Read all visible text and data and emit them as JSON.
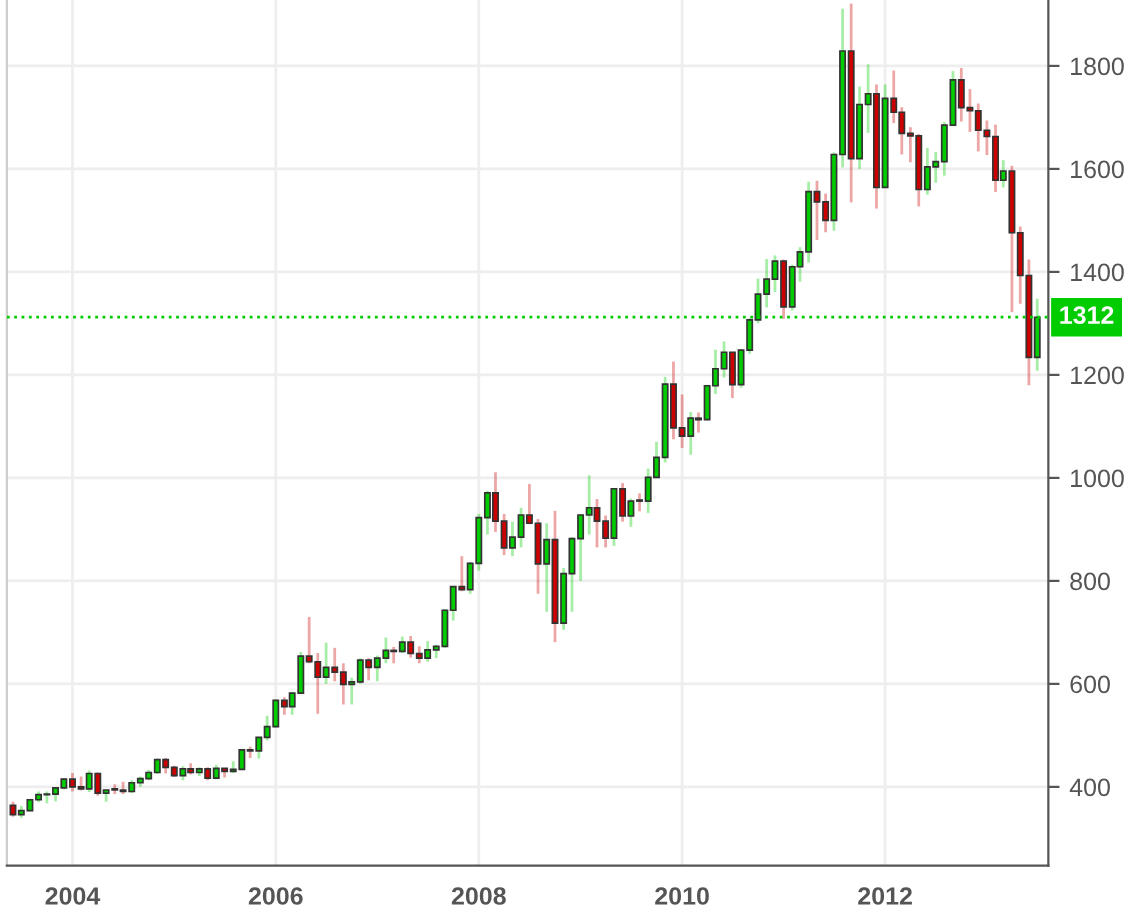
{
  "chart_data": {
    "type": "candlestick",
    "x": [
      "2003-06",
      "2003-07",
      "2003-08",
      "2003-09",
      "2003-10",
      "2003-11",
      "2003-12",
      "2004-01",
      "2004-02",
      "2004-03",
      "2004-04",
      "2004-05",
      "2004-06",
      "2004-07",
      "2004-08",
      "2004-09",
      "2004-10",
      "2004-11",
      "2004-12",
      "2005-01",
      "2005-02",
      "2005-03",
      "2005-04",
      "2005-05",
      "2005-06",
      "2005-07",
      "2005-08",
      "2005-09",
      "2005-10",
      "2005-11",
      "2005-12",
      "2006-01",
      "2006-02",
      "2006-03",
      "2006-04",
      "2006-05",
      "2006-06",
      "2006-07",
      "2006-08",
      "2006-09",
      "2006-10",
      "2006-11",
      "2006-12",
      "2007-01",
      "2007-02",
      "2007-03",
      "2007-04",
      "2007-05",
      "2007-06",
      "2007-07",
      "2007-08",
      "2007-09",
      "2007-10",
      "2007-11",
      "2007-12",
      "2008-01",
      "2008-02",
      "2008-03",
      "2008-04",
      "2008-05",
      "2008-06",
      "2008-07",
      "2008-08",
      "2008-09",
      "2008-10",
      "2008-11",
      "2008-12",
      "2009-01",
      "2009-02",
      "2009-03",
      "2009-04",
      "2009-05",
      "2009-06",
      "2009-07",
      "2009-08",
      "2009-09",
      "2009-10",
      "2009-11",
      "2009-12",
      "2010-01",
      "2010-02",
      "2010-03",
      "2010-04",
      "2010-05",
      "2010-06",
      "2010-07",
      "2010-08",
      "2010-09",
      "2010-10",
      "2010-11",
      "2010-12",
      "2011-01",
      "2011-02",
      "2011-03",
      "2011-04",
      "2011-05",
      "2011-06",
      "2011-07",
      "2011-08",
      "2011-09",
      "2011-10",
      "2011-11",
      "2011-12",
      "2012-01",
      "2012-02",
      "2012-03",
      "2012-04",
      "2012-05",
      "2012-06",
      "2012-07",
      "2012-08",
      "2012-09",
      "2012-10",
      "2012-11",
      "2012-12",
      "2013-01",
      "2013-02",
      "2013-03",
      "2013-04",
      "2013-05",
      "2013-06",
      "2013-07"
    ],
    "ohlc": [
      [
        364,
        371,
        342,
        346
      ],
      [
        346,
        363,
        340,
        354
      ],
      [
        354,
        377,
        352,
        375
      ],
      [
        375,
        391,
        370,
        385
      ],
      [
        385,
        391,
        368,
        386
      ],
      [
        386,
        400,
        372,
        398
      ],
      [
        398,
        417,
        395,
        415
      ],
      [
        415,
        427,
        391,
        400
      ],
      [
        400,
        420,
        393,
        396
      ],
      [
        396,
        432,
        390,
        426
      ],
      [
        426,
        428,
        383,
        388
      ],
      [
        388,
        395,
        371,
        394
      ],
      [
        396,
        405,
        386,
        394
      ],
      [
        394,
        410,
        386,
        391
      ],
      [
        391,
        413,
        388,
        408
      ],
      [
        408,
        420,
        400,
        416
      ],
      [
        416,
        433,
        413,
        428
      ],
      [
        428,
        455,
        425,
        453
      ],
      [
        453,
        456,
        426,
        438
      ],
      [
        438,
        441,
        419,
        422
      ],
      [
        422,
        440,
        413,
        435
      ],
      [
        435,
        446,
        424,
        428
      ],
      [
        428,
        438,
        421,
        435
      ],
      [
        435,
        438,
        413,
        417
      ],
      [
        417,
        443,
        415,
        436
      ],
      [
        436,
        436,
        418,
        430
      ],
      [
        430,
        450,
        427,
        434
      ],
      [
        434,
        474,
        433,
        472
      ],
      [
        472,
        478,
        456,
        470
      ],
      [
        470,
        497,
        455,
        496
      ],
      [
        496,
        538,
        490,
        517
      ],
      [
        517,
        570,
        515,
        568
      ],
      [
        568,
        574,
        540,
        556
      ],
      [
        556,
        585,
        540,
        582
      ],
      [
        582,
        662,
        580,
        654
      ],
      [
        654,
        730,
        640,
        643
      ],
      [
        643,
        660,
        542,
        613
      ],
      [
        613,
        680,
        600,
        632
      ],
      [
        632,
        670,
        605,
        623
      ],
      [
        623,
        640,
        560,
        599
      ],
      [
        599,
        612,
        560,
        604
      ],
      [
        604,
        650,
        600,
        646
      ],
      [
        646,
        650,
        607,
        632
      ],
      [
        632,
        655,
        605,
        650
      ],
      [
        650,
        690,
        640,
        665
      ],
      [
        665,
        672,
        640,
        663
      ],
      [
        663,
        692,
        660,
        681
      ],
      [
        681,
        693,
        651,
        659
      ],
      [
        659,
        673,
        640,
        650
      ],
      [
        650,
        683,
        643,
        666
      ],
      [
        666,
        676,
        650,
        673
      ],
      [
        673,
        745,
        670,
        743
      ],
      [
        743,
        790,
        723,
        789
      ],
      [
        789,
        848,
        780,
        783
      ],
      [
        783,
        837,
        775,
        834
      ],
      [
        834,
        930,
        820,
        923
      ],
      [
        923,
        975,
        890,
        971
      ],
      [
        971,
        1011,
        895,
        916
      ],
      [
        916,
        930,
        850,
        864
      ],
      [
        864,
        915,
        848,
        885
      ],
      [
        885,
        942,
        865,
        928
      ],
      [
        928,
        988,
        910,
        912
      ],
      [
        912,
        920,
        775,
        833
      ],
      [
        833,
        912,
        740,
        880
      ],
      [
        880,
        936,
        681,
        718
      ],
      [
        718,
        825,
        705,
        814
      ],
      [
        814,
        885,
        740,
        882
      ],
      [
        882,
        930,
        800,
        928
      ],
      [
        928,
        1005,
        890,
        942
      ],
      [
        942,
        959,
        865,
        916
      ],
      [
        916,
        927,
        865,
        883
      ],
      [
        883,
        980,
        868,
        979
      ],
      [
        979,
        990,
        915,
        926
      ],
      [
        926,
        960,
        905,
        955
      ],
      [
        957,
        970,
        935,
        955
      ],
      [
        955,
        1018,
        932,
        1001
      ],
      [
        1001,
        1070,
        1000,
        1040
      ],
      [
        1040,
        1196,
        1030,
        1182
      ],
      [
        1182,
        1226,
        1075,
        1097
      ],
      [
        1097,
        1162,
        1058,
        1081
      ],
      [
        1081,
        1128,
        1045,
        1116
      ],
      [
        1116,
        1127,
        1088,
        1113
      ],
      [
        1113,
        1180,
        1112,
        1179
      ],
      [
        1179,
        1249,
        1163,
        1212
      ],
      [
        1212,
        1265,
        1195,
        1244
      ],
      [
        1244,
        1245,
        1155,
        1181
      ],
      [
        1181,
        1250,
        1175,
        1248
      ],
      [
        1248,
        1310,
        1241,
        1307
      ],
      [
        1307,
        1387,
        1300,
        1357
      ],
      [
        1357,
        1425,
        1331,
        1386
      ],
      [
        1386,
        1432,
        1361,
        1421
      ],
      [
        1421,
        1424,
        1309,
        1332
      ],
      [
        1332,
        1414,
        1325,
        1410
      ],
      [
        1410,
        1448,
        1381,
        1439
      ],
      [
        1439,
        1575,
        1418,
        1556
      ],
      [
        1556,
        1577,
        1462,
        1536
      ],
      [
        1536,
        1552,
        1477,
        1500
      ],
      [
        1500,
        1632,
        1480,
        1628
      ],
      [
        1628,
        1911,
        1603,
        1829
      ],
      [
        1829,
        1921,
        1535,
        1620
      ],
      [
        1620,
        1760,
        1600,
        1725
      ],
      [
        1725,
        1803,
        1670,
        1746
      ],
      [
        1746,
        1764,
        1523,
        1564
      ],
      [
        1564,
        1764,
        1564,
        1737
      ],
      [
        1737,
        1791,
        1689,
        1710
      ],
      [
        1710,
        1720,
        1628,
        1669
      ],
      [
        1669,
        1681,
        1613,
        1664
      ],
      [
        1664,
        1668,
        1527,
        1560
      ],
      [
        1560,
        1641,
        1550,
        1604
      ],
      [
        1604,
        1633,
        1573,
        1614
      ],
      [
        1614,
        1691,
        1587,
        1685
      ],
      [
        1685,
        1790,
        1683,
        1773
      ],
      [
        1773,
        1796,
        1692,
        1719
      ],
      [
        1719,
        1755,
        1672,
        1713
      ],
      [
        1713,
        1727,
        1634,
        1675
      ],
      [
        1675,
        1694,
        1627,
        1663
      ],
      [
        1663,
        1686,
        1555,
        1578
      ],
      [
        1578,
        1617,
        1564,
        1596
      ],
      [
        1596,
        1606,
        1322,
        1476
      ],
      [
        1476,
        1488,
        1338,
        1393
      ],
      [
        1393,
        1424,
        1180,
        1234
      ],
      [
        1234,
        1348,
        1208,
        1312
      ]
    ],
    "colors": [
      "#cc0000",
      "#00cc00",
      "#00cc00",
      "#00cc00",
      "#00cc00",
      "#00cc00",
      "#00cc00",
      "#cc0000",
      "#cc0000",
      "#00cc00",
      "#cc0000",
      "#00cc00",
      "#cc0000",
      "#cc0000",
      "#00cc00",
      "#00cc00",
      "#00cc00",
      "#00cc00",
      "#cc0000",
      "#cc0000",
      "#00cc00",
      "#cc0000",
      "#00cc00",
      "#cc0000",
      "#00cc00",
      "#cc0000",
      "#00cc00",
      "#00cc00",
      "#cc0000",
      "#00cc00",
      "#00cc00",
      "#00cc00",
      "#cc0000",
      "#00cc00",
      "#00cc00",
      "#cc0000",
      "#cc0000",
      "#00cc00",
      "#cc0000",
      "#cc0000",
      "#00cc00",
      "#00cc00",
      "#cc0000",
      "#00cc00",
      "#00cc00",
      "#cc0000",
      "#00cc00",
      "#cc0000",
      "#cc0000",
      "#00cc00",
      "#00cc00",
      "#00cc00",
      "#00cc00",
      "#cc0000",
      "#00cc00",
      "#00cc00",
      "#00cc00",
      "#cc0000",
      "#cc0000",
      "#00cc00",
      "#00cc00",
      "#cc0000",
      "#cc0000",
      "#00cc00",
      "#cc0000",
      "#00cc00",
      "#00cc00",
      "#00cc00",
      "#00cc00",
      "#cc0000",
      "#cc0000",
      "#00cc00",
      "#cc0000",
      "#00cc00",
      "#cc0000",
      "#00cc00",
      "#00cc00",
      "#00cc00",
      "#cc0000",
      "#cc0000",
      "#00cc00",
      "#cc0000",
      "#00cc00",
      "#00cc00",
      "#00cc00",
      "#cc0000",
      "#00cc00",
      "#00cc00",
      "#00cc00",
      "#00cc00",
      "#00cc00",
      "#cc0000",
      "#00cc00",
      "#00cc00",
      "#00cc00",
      "#cc0000",
      "#cc0000",
      "#00cc00",
      "#00cc00",
      "#cc0000",
      "#00cc00",
      "#00cc00",
      "#cc0000",
      "#00cc00",
      "#cc0000",
      "#cc0000",
      "#cc0000",
      "#cc0000",
      "#00cc00",
      "#00cc00",
      "#00cc00",
      "#00cc00",
      "#cc0000",
      "#cc0000",
      "#cc0000",
      "#cc0000",
      "#cc0000",
      "#00cc00",
      "#cc0000",
      "#cc0000",
      "#cc0000",
      "#00cc00"
    ],
    "xlim": [
      "2003-05-10",
      "2013-08-10"
    ],
    "xticks": [
      {
        "value": "2004",
        "label": "2004"
      },
      {
        "value": "2006",
        "label": "2006"
      },
      {
        "value": "2008",
        "label": "2008"
      },
      {
        "value": "2010",
        "label": "2010"
      },
      {
        "value": "2012",
        "label": "2012"
      }
    ],
    "ylim": [
      247,
      1928
    ],
    "yticks": [
      400,
      600,
      800,
      1000,
      1200,
      1400,
      1600,
      1800
    ],
    "grid": true,
    "ref_lines": [
      {
        "axis": "y",
        "value": 1312,
        "label": "1312",
        "color": "#00cc00",
        "line_style": "dotted"
      }
    ]
  }
}
